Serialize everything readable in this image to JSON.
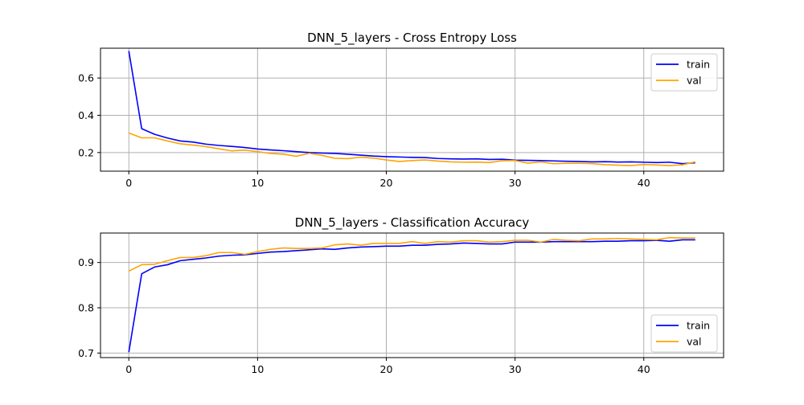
{
  "chart_data": [
    {
      "type": "line",
      "title": "DNN_5_layers - Cross Entropy Loss",
      "xlabel": "",
      "ylabel": "",
      "xlim": [
        -2.2,
        46.2
      ],
      "ylim": [
        0.1,
        0.76
      ],
      "xticks": [
        0,
        10,
        20,
        30,
        40
      ],
      "yticks": [
        0.2,
        0.4,
        0.6
      ],
      "ytick_labels": [
        "0.2",
        "0.4",
        "0.6"
      ],
      "grid": true,
      "legend_position": "top-right",
      "x": [
        0,
        1,
        2,
        3,
        4,
        5,
        6,
        7,
        8,
        9,
        10,
        11,
        12,
        13,
        14,
        15,
        16,
        17,
        18,
        19,
        20,
        21,
        22,
        23,
        24,
        25,
        26,
        27,
        28,
        29,
        30,
        31,
        32,
        33,
        34,
        35,
        36,
        37,
        38,
        39,
        40,
        41,
        42,
        43,
        44
      ],
      "series": [
        {
          "name": "train",
          "color": "#0000ff",
          "values": [
            0.745,
            0.328,
            0.298,
            0.278,
            0.262,
            0.256,
            0.245,
            0.238,
            0.233,
            0.227,
            0.219,
            0.214,
            0.21,
            0.205,
            0.2,
            0.197,
            0.195,
            0.191,
            0.186,
            0.181,
            0.178,
            0.176,
            0.174,
            0.173,
            0.168,
            0.166,
            0.165,
            0.166,
            0.163,
            0.164,
            0.159,
            0.158,
            0.157,
            0.155,
            0.153,
            0.152,
            0.15,
            0.151,
            0.149,
            0.15,
            0.148,
            0.146,
            0.148,
            0.14,
            0.145
          ]
        },
        {
          "name": "val",
          "color": "#ffa500",
          "values": [
            0.305,
            0.279,
            0.279,
            0.262,
            0.247,
            0.24,
            0.232,
            0.22,
            0.209,
            0.213,
            0.205,
            0.195,
            0.191,
            0.18,
            0.196,
            0.185,
            0.169,
            0.167,
            0.175,
            0.17,
            0.16,
            0.152,
            0.157,
            0.16,
            0.154,
            0.15,
            0.148,
            0.149,
            0.146,
            0.156,
            0.157,
            0.143,
            0.15,
            0.14,
            0.142,
            0.142,
            0.14,
            0.135,
            0.132,
            0.13,
            0.136,
            0.133,
            0.13,
            0.134,
            0.15
          ]
        }
      ]
    },
    {
      "type": "line",
      "title": "DNN_5_layers - Classification Accuracy",
      "xlabel": "",
      "ylabel": "",
      "xlim": [
        -2.2,
        46.2
      ],
      "ylim": [
        0.69,
        0.965
      ],
      "xticks": [
        0,
        10,
        20,
        30,
        40
      ],
      "yticks": [
        0.7,
        0.8,
        0.9
      ],
      "ytick_labels": [
        "0.7",
        "0.8",
        "0.9"
      ],
      "grid": true,
      "legend_position": "bottom-right",
      "x": [
        0,
        1,
        2,
        3,
        4,
        5,
        6,
        7,
        8,
        9,
        10,
        11,
        12,
        13,
        14,
        15,
        16,
        17,
        18,
        19,
        20,
        21,
        22,
        23,
        24,
        25,
        26,
        27,
        28,
        29,
        30,
        31,
        32,
        33,
        34,
        35,
        36,
        37,
        38,
        39,
        40,
        41,
        42,
        43,
        44
      ],
      "series": [
        {
          "name": "train",
          "color": "#0000ff",
          "values": [
            0.702,
            0.875,
            0.89,
            0.895,
            0.904,
            0.907,
            0.91,
            0.914,
            0.916,
            0.917,
            0.92,
            0.923,
            0.924,
            0.926,
            0.928,
            0.93,
            0.929,
            0.932,
            0.934,
            0.935,
            0.936,
            0.936,
            0.938,
            0.938,
            0.94,
            0.941,
            0.943,
            0.942,
            0.941,
            0.941,
            0.945,
            0.945,
            0.945,
            0.946,
            0.946,
            0.946,
            0.946,
            0.947,
            0.947,
            0.948,
            0.948,
            0.949,
            0.947,
            0.95,
            0.95
          ]
        },
        {
          "name": "val",
          "color": "#ffa500",
          "values": [
            0.881,
            0.895,
            0.896,
            0.904,
            0.911,
            0.911,
            0.915,
            0.922,
            0.922,
            0.918,
            0.924,
            0.929,
            0.932,
            0.931,
            0.931,
            0.932,
            0.939,
            0.941,
            0.938,
            0.942,
            0.942,
            0.942,
            0.946,
            0.942,
            0.946,
            0.945,
            0.948,
            0.948,
            0.945,
            0.946,
            0.949,
            0.949,
            0.945,
            0.951,
            0.949,
            0.948,
            0.952,
            0.952,
            0.953,
            0.952,
            0.951,
            0.95,
            0.955,
            0.954,
            0.954
          ]
        }
      ]
    }
  ]
}
